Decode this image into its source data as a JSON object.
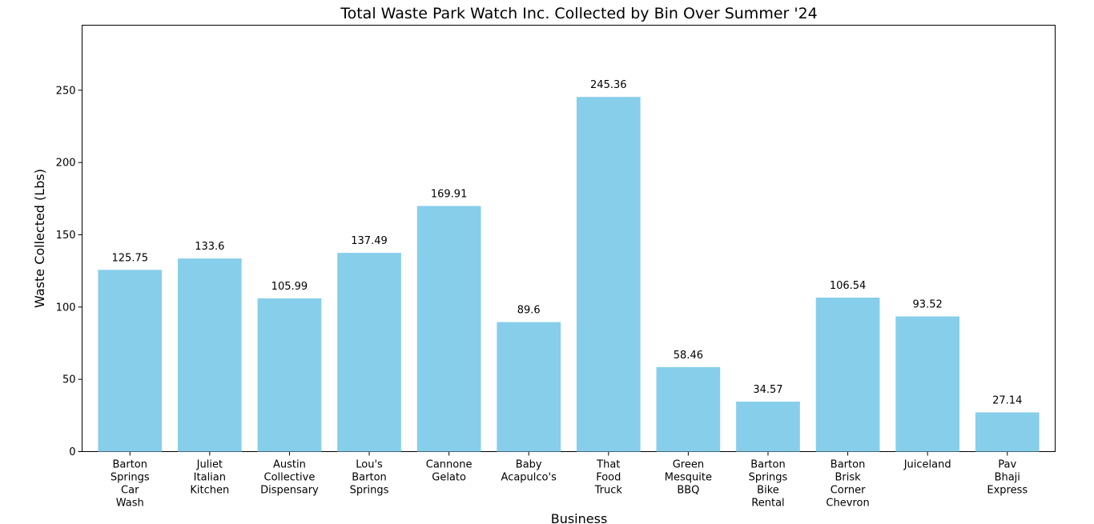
{
  "chart_data": {
    "type": "bar",
    "title": "Total Waste Park Watch Inc. Collected by Bin Over Summer '24",
    "xlabel": "Business",
    "ylabel": "Waste Collected (Lbs)",
    "ylim": [
      0,
      295
    ],
    "yticks": [
      0,
      50,
      100,
      150,
      200,
      250
    ],
    "grid": false,
    "bar_color": "#87CEEB",
    "categories": [
      "Barton Springs Car Wash",
      "Juliet Italian Kitchen",
      "Austin Collective Dispensary",
      "Lou's Barton Springs",
      "Cannone Gelato",
      "Baby Acapulco's",
      "That Food Truck",
      "Green Mesquite BBQ",
      "Barton Springs Bike Rental",
      "Barton Brisk Corner Chevron",
      "Juiceland",
      "Pav Bhaji Express"
    ],
    "values": [
      125.75,
      133.6,
      105.99,
      137.49,
      169.91,
      89.6,
      245.36,
      58.46,
      34.57,
      106.54,
      93.52,
      27.14
    ],
    "value_labels": [
      "125.75",
      "133.6",
      "105.99",
      "137.49",
      "169.91",
      "89.6",
      "245.36",
      "58.46",
      "34.57",
      "106.54",
      "93.52",
      "27.14"
    ]
  }
}
